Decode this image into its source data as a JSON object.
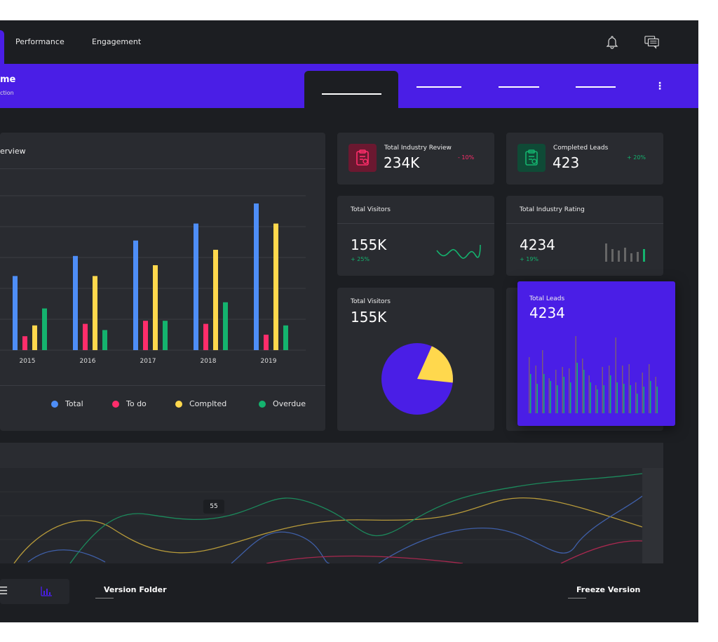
{
  "nav": {
    "tabs": [
      "Performance",
      "Engagement"
    ]
  },
  "header": {
    "title": "me",
    "subtitle": "ction"
  },
  "overview": {
    "title": "erview",
    "years": [
      "2015",
      "2016",
      "2017",
      "2018",
      "2019"
    ],
    "series": [
      {
        "name": "Total",
        "color": "#4e8ef7",
        "values": [
          48,
          61,
          71,
          82,
          95
        ]
      },
      {
        "name": "To do",
        "color": "#ff2d6b",
        "values": [
          9,
          17,
          19,
          17,
          10
        ]
      },
      {
        "name": "Complted",
        "color": "#ffd84d",
        "values": [
          16,
          48,
          55,
          65,
          82
        ]
      },
      {
        "name": "Overdue",
        "color": "#14b36e",
        "values": [
          27,
          13,
          19,
          31,
          16
        ]
      }
    ]
  },
  "cards": {
    "review": {
      "title": "Total Industry Review",
      "value": "234K",
      "change": "- 10%"
    },
    "completed": {
      "title": "Completed Leads",
      "value": "423",
      "change": "+ 20%"
    },
    "visitors1": {
      "title": "Total Visitors",
      "value": "155K",
      "change": "+ 25%"
    },
    "rating": {
      "title": "Total Industry Rating",
      "value": "4234",
      "change": "+ 19%"
    },
    "visitors2": {
      "title": "Total Visitors",
      "value": "155K"
    },
    "leads": {
      "title": "Total Leads",
      "value": "4234"
    }
  },
  "pie": {
    "purple": 0.8,
    "yellow": 0.2
  },
  "trend": {
    "tooltip": "55"
  },
  "bottom": {
    "version_folder": "Version Folder",
    "freeze_version": "Freeze Version"
  },
  "colors": {
    "accent": "#4a1ee6",
    "bg": "#1c1e22",
    "card": "#292b30",
    "red": "#ff2d6b",
    "green": "#14b36e"
  }
}
